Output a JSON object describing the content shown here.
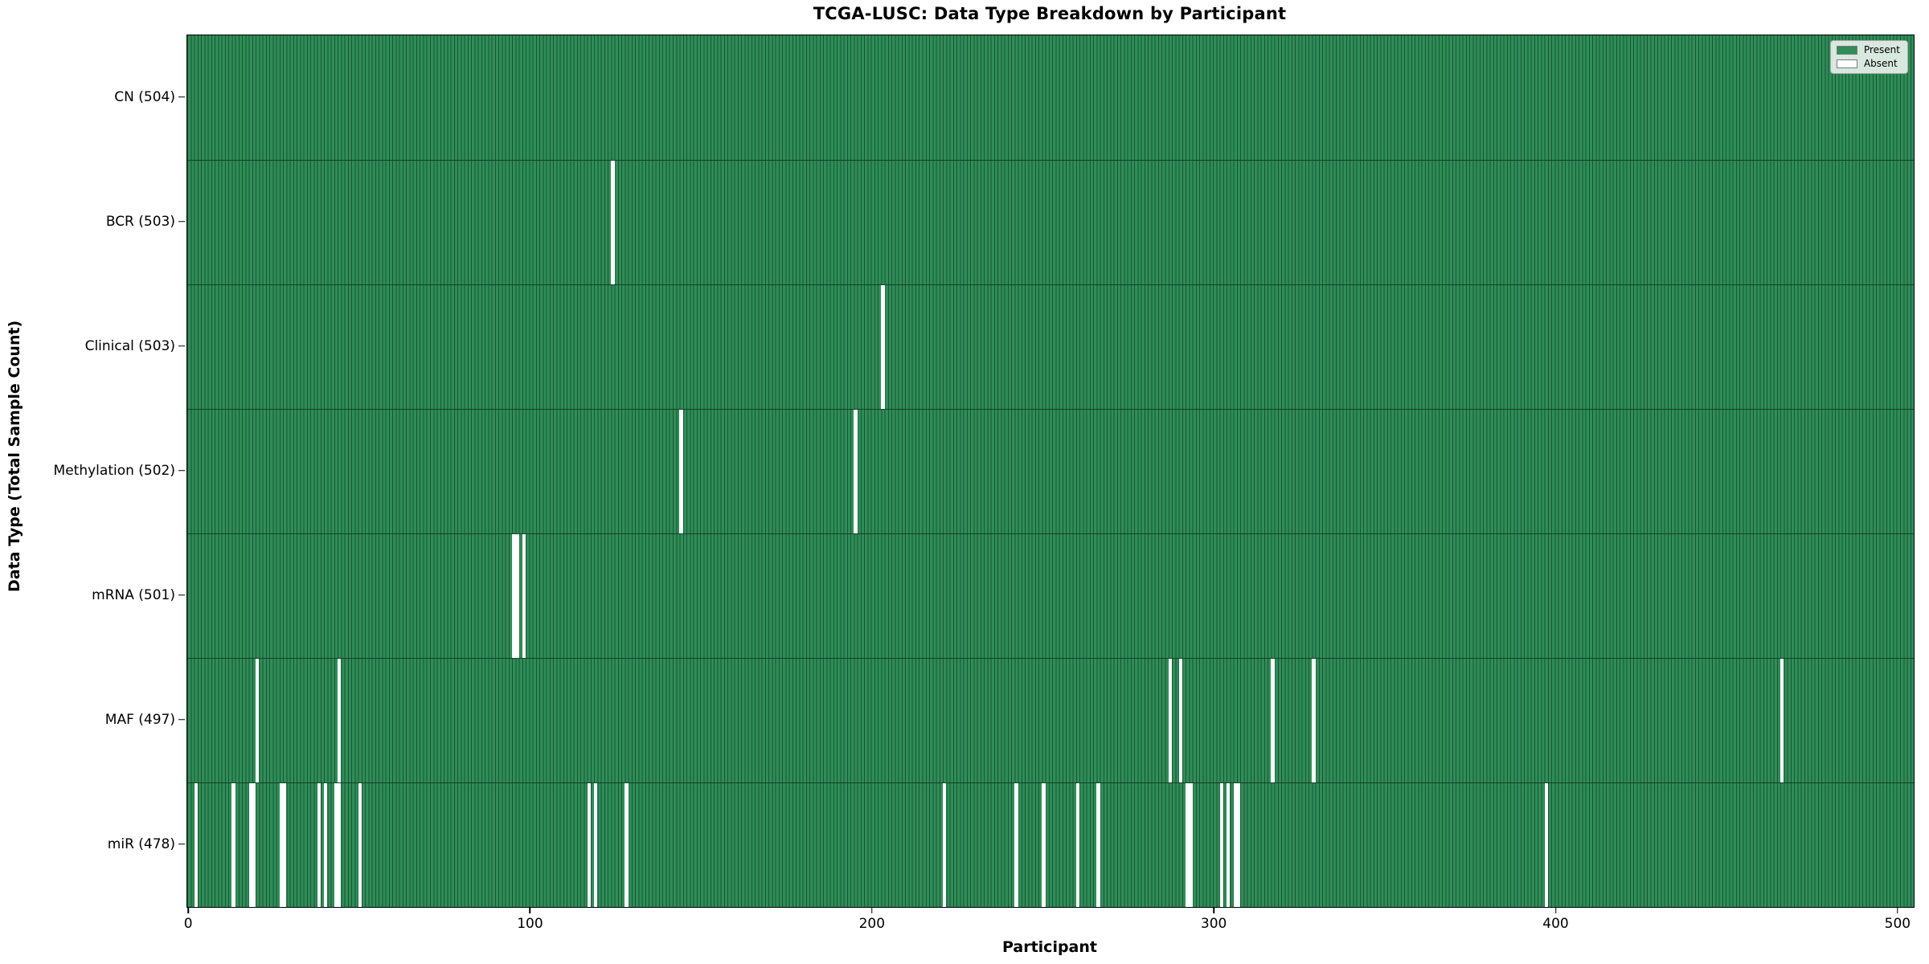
{
  "chart_data": {
    "type": "heatmap",
    "title": "TCGA-LUSC: Data Type Breakdown by Participant",
    "xlabel": "Participant",
    "ylabel": "Data Type (Total Sample Count)",
    "x_range": [
      -0.5,
      504.5
    ],
    "x_ticks": [
      0,
      100,
      200,
      300,
      400,
      500
    ],
    "n_participants": 504,
    "grid": false,
    "legend_position": "upper right",
    "legend": [
      {
        "label": "Present",
        "color": "#2e8e57"
      },
      {
        "label": "Absent",
        "color": "#ffffff"
      }
    ],
    "rows": [
      {
        "label": "CN (504)",
        "present_count": 504,
        "absent_participants": []
      },
      {
        "label": "BCR (503)",
        "present_count": 503,
        "absent_participants": [
          124
        ]
      },
      {
        "label": "Clinical (503)",
        "present_count": 503,
        "absent_participants": [
          203
        ]
      },
      {
        "label": "Methylation (502)",
        "present_count": 502,
        "absent_participants": [
          144,
          195
        ]
      },
      {
        "label": "mRNA (501)",
        "present_count": 501,
        "absent_participants": [
          95,
          96,
          98
        ]
      },
      {
        "label": "MAF (497)",
        "present_count": 497,
        "absent_participants": [
          20,
          44,
          287,
          290,
          317,
          329,
          466
        ]
      },
      {
        "label": "miR (478)",
        "present_count": 478,
        "absent_participants": [
          2,
          13,
          18,
          19,
          27,
          28,
          38,
          40,
          43,
          44,
          50,
          117,
          119,
          128,
          221,
          242,
          250,
          260,
          266,
          292,
          293,
          302,
          304,
          306,
          307,
          397
        ]
      }
    ],
    "colors": {
      "present": "#2e8e57",
      "absent": "#ffffff",
      "cell_edge": "#1b5434",
      "row_divider": "#153f27",
      "frame": "#000000"
    }
  }
}
